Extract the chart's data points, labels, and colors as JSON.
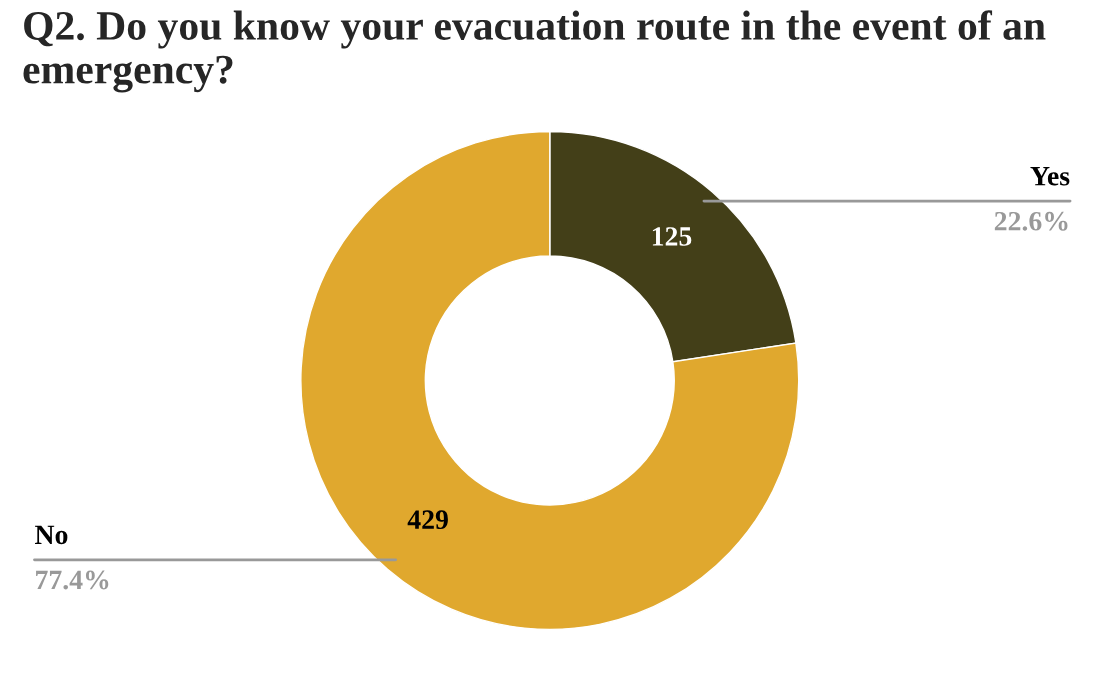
{
  "chart_data": {
    "type": "donut",
    "title": "Q2. Do you know your evacuation route in the event of an emergency?",
    "categories": [
      "Yes",
      "No"
    ],
    "values": [
      22.6,
      77.4
    ],
    "colors": [
      "#433f18",
      "#e0a82e"
    ],
    "value_labels": [
      "22.6%",
      "77.4%"
    ],
    "annotations": [
      {
        "text": "125",
        "x": "Yes"
      },
      {
        "text": "429",
        "x": "No"
      }
    ]
  }
}
